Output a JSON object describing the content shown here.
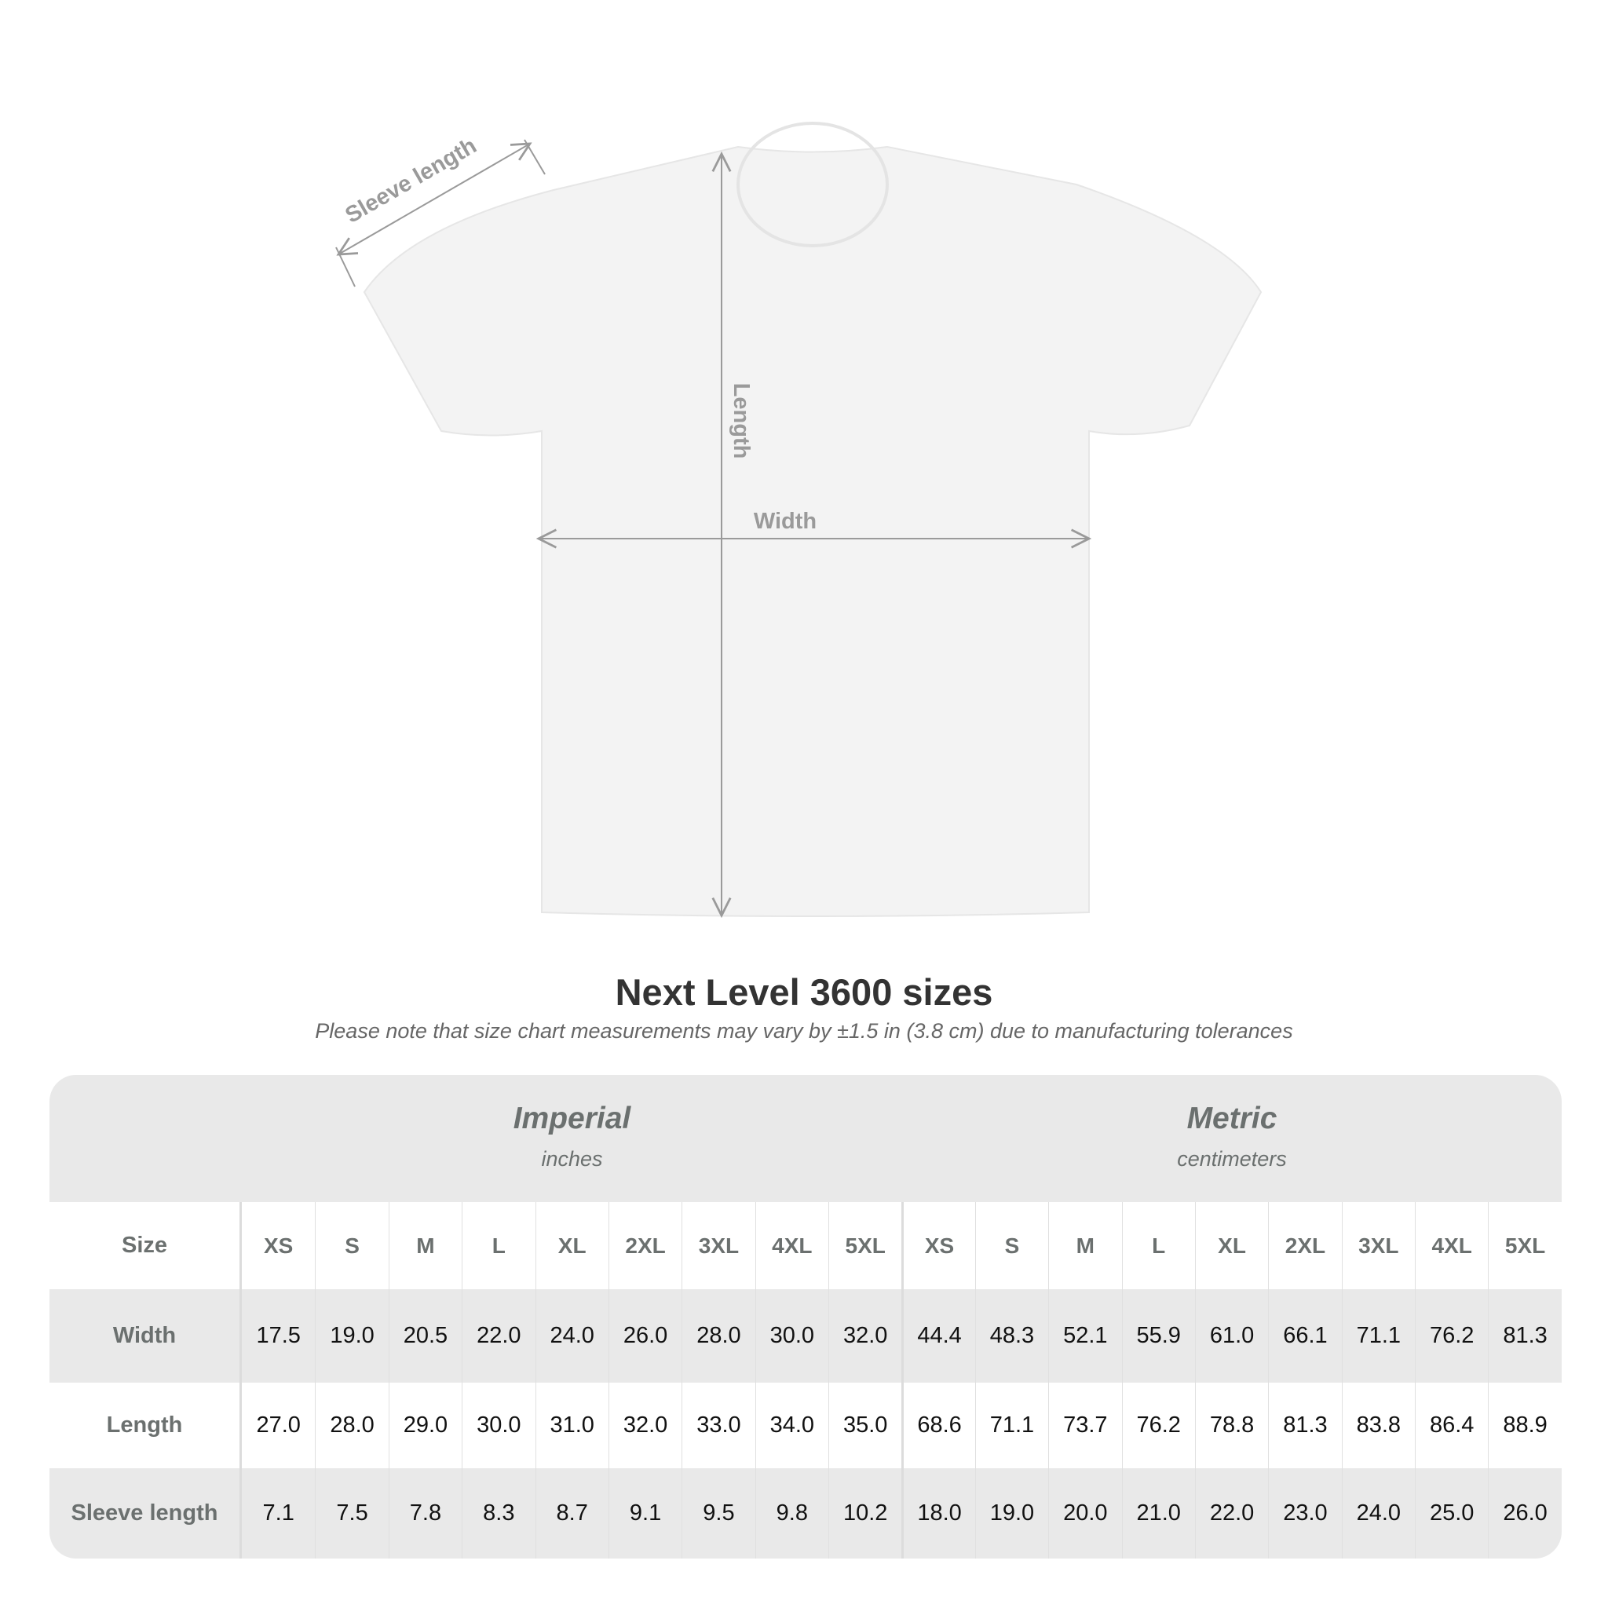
{
  "diagram": {
    "labels": {
      "sleeve": "Sleeve length",
      "length": "Length",
      "width": "Width"
    },
    "shirt_color": "#f3f3f3",
    "measure_line_color": "#9a9a9a"
  },
  "title": "Next Level 3600 sizes",
  "subtitle": "Please note that size chart measurements may vary by ±1.5 in (3.8 cm) due to manufacturing tolerances",
  "table": {
    "imperial": {
      "title": "Imperial",
      "unit": "inches"
    },
    "metric": {
      "title": "Metric",
      "unit": "centimeters"
    },
    "size_label": "Size",
    "sizes": [
      "XS",
      "S",
      "M",
      "L",
      "XL",
      "2XL",
      "3XL",
      "4XL",
      "5XL"
    ],
    "rows": [
      {
        "label": "Width",
        "imperial": [
          "17.5",
          "19.0",
          "20.5",
          "22.0",
          "24.0",
          "26.0",
          "28.0",
          "30.0",
          "32.0"
        ],
        "metric": [
          "44.4",
          "48.3",
          "52.1",
          "55.9",
          "61.0",
          "66.1",
          "71.1",
          "76.2",
          "81.3"
        ]
      },
      {
        "label": "Length",
        "imperial": [
          "27.0",
          "28.0",
          "29.0",
          "30.0",
          "31.0",
          "32.0",
          "33.0",
          "34.0",
          "35.0"
        ],
        "metric": [
          "68.6",
          "71.1",
          "73.7",
          "76.2",
          "78.8",
          "81.3",
          "83.8",
          "86.4",
          "88.9"
        ]
      },
      {
        "label": "Sleeve length",
        "imperial": [
          "7.1",
          "7.5",
          "7.8",
          "8.3",
          "8.7",
          "9.1",
          "9.5",
          "9.8",
          "10.2"
        ],
        "metric": [
          "18.0",
          "19.0",
          "20.0",
          "21.0",
          "22.0",
          "23.0",
          "24.0",
          "25.0",
          "26.0"
        ]
      }
    ]
  }
}
